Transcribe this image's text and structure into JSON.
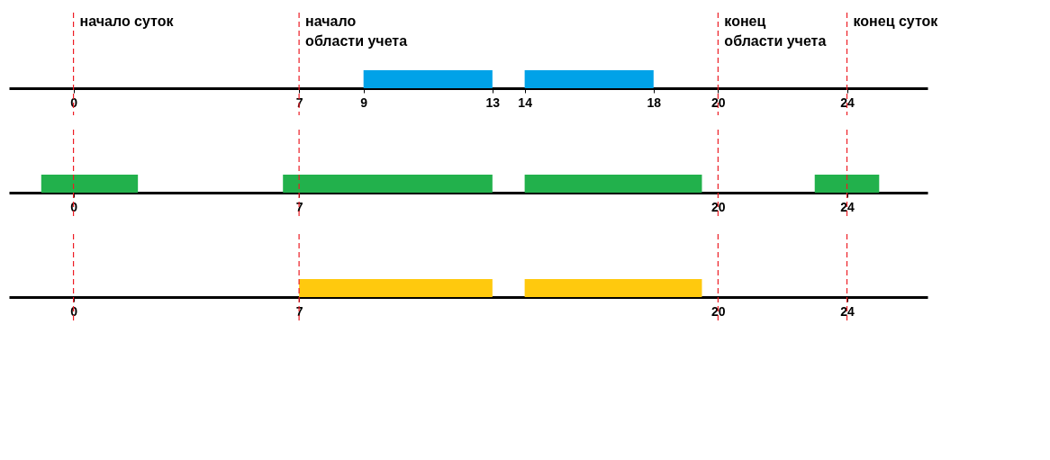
{
  "chart_data": [
    {
      "type": "bar",
      "orientation": "horizontal",
      "categories": [
        null
      ],
      "xlim": [
        -2,
        26.5
      ],
      "xticks": [
        0,
        7,
        9,
        13,
        14,
        18,
        20,
        24
      ],
      "series": [
        {
          "color": "#00a2e8",
          "values": [
            4
          ],
          "base": [
            9
          ]
        },
        {
          "color": "#00a2e8",
          "values": [
            4
          ],
          "base": [
            14
          ]
        }
      ],
      "ref_lines": [
        {
          "axis": "x",
          "value": 0,
          "label": "начало суток",
          "color": "#ed1c24",
          "line_style": "dashed"
        },
        {
          "axis": "x",
          "value": 7,
          "label": "начало\nобласти учета",
          "color": "#ed1c24",
          "line_style": "dashed"
        },
        {
          "axis": "x",
          "value": 20,
          "label": "конец\nобласти учета",
          "color": "#ed1c24",
          "line_style": "dashed"
        },
        {
          "axis": "x",
          "value": 24,
          "label": "конец суток",
          "color": "#ed1c24",
          "line_style": "dashed"
        }
      ]
    },
    {
      "type": "bar",
      "orientation": "horizontal",
      "categories": [
        null
      ],
      "xlim": [
        -2,
        26.5
      ],
      "xticks": [
        0,
        7,
        20,
        24
      ],
      "series": [
        {
          "color": "#22b14c",
          "values": [
            3
          ],
          "base": [
            -1
          ]
        },
        {
          "color": "#22b14c",
          "values": [
            6.5
          ],
          "base": [
            6.5
          ]
        },
        {
          "color": "#22b14c",
          "values": [
            5.5
          ],
          "base": [
            14
          ]
        },
        {
          "color": "#22b14c",
          "values": [
            2
          ],
          "base": [
            23
          ]
        }
      ],
      "ref_lines": [
        {
          "axis": "x",
          "value": 0,
          "color": "#ed1c24",
          "line_style": "dashed"
        },
        {
          "axis": "x",
          "value": 7,
          "color": "#ed1c24",
          "line_style": "dashed"
        },
        {
          "axis": "x",
          "value": 20,
          "color": "#ed1c24",
          "line_style": "dashed"
        },
        {
          "axis": "x",
          "value": 24,
          "color": "#ed1c24",
          "line_style": "dashed"
        }
      ]
    },
    {
      "type": "bar",
      "orientation": "horizontal",
      "categories": [
        null
      ],
      "xlim": [
        -2,
        26.5
      ],
      "xticks": [
        0,
        7,
        20,
        24
      ],
      "series": [
        {
          "color": "#ffc90e",
          "values": [
            6
          ],
          "base": [
            7
          ]
        },
        {
          "color": "#ffc90e",
          "values": [
            5.5
          ],
          "base": [
            14
          ]
        }
      ],
      "ref_lines": [
        {
          "axis": "x",
          "value": 0,
          "color": "#ed1c24",
          "line_style": "dashed"
        },
        {
          "axis": "x",
          "value": 7,
          "color": "#ed1c24",
          "line_style": "dashed"
        },
        {
          "axis": "x",
          "value": 20,
          "color": "#ed1c24",
          "line_style": "dashed"
        },
        {
          "axis": "x",
          "value": 24,
          "color": "#ed1c24",
          "line_style": "dashed"
        }
      ]
    }
  ]
}
